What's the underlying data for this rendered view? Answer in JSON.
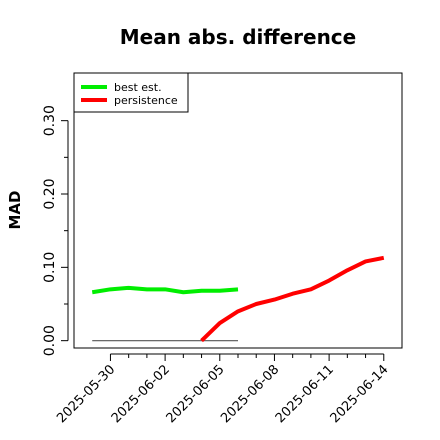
{
  "chart_data": {
    "type": "line",
    "title": "Mean abs. difference",
    "ylabel": "MAD",
    "xlabel": "",
    "xlim": [
      "2025-05-28",
      "2025-06-15"
    ],
    "ylim": [
      -0.01,
      0.365
    ],
    "y_ticks": [
      0.0,
      0.1,
      0.2,
      0.3
    ],
    "y_tick_labels": [
      "0.00",
      "0.10",
      "0.20",
      "0.30"
    ],
    "y_minor_ticks": [
      0.05,
      0.15,
      0.25
    ],
    "x_ticks": [
      "2025-05-30",
      "2025-06-02",
      "2025-06-05",
      "2025-06-08",
      "2025-06-11",
      "2025-06-14"
    ],
    "x_tick_labels": [
      "2025-05-30",
      "2025-06-02",
      "2025-06-05",
      "2025-06-08",
      "2025-06-11",
      "2025-06-14"
    ],
    "x_minor_ticks": [
      "2025-05-31",
      "2025-06-01",
      "2025-06-03",
      "2025-06-04",
      "2025-06-06",
      "2025-06-07",
      "2025-06-09",
      "2025-06-10",
      "2025-06-12",
      "2025-06-13"
    ],
    "legend": {
      "position": "top-left",
      "entries": [
        "best est.",
        "persistence"
      ]
    },
    "series": [
      {
        "name": "best est.",
        "color": "#00ee00",
        "x": [
          "2025-05-29",
          "2025-05-30",
          "2025-05-31",
          "2025-06-01",
          "2025-06-02",
          "2025-06-03",
          "2025-06-04",
          "2025-06-05",
          "2025-06-06"
        ],
        "y": [
          0.066,
          0.07,
          0.072,
          0.07,
          0.07,
          0.066,
          0.068,
          0.068,
          0.07
        ]
      },
      {
        "name": "persistence",
        "color": "#ff0000",
        "x": [
          "2025-06-04",
          "2025-06-05",
          "2025-06-06",
          "2025-06-07",
          "2025-06-08",
          "2025-06-09",
          "2025-06-10",
          "2025-06-11",
          "2025-06-12",
          "2025-06-13",
          "2025-06-14"
        ],
        "y": [
          0.0,
          0.024,
          0.04,
          0.05,
          0.056,
          0.064,
          0.07,
          0.082,
          0.096,
          0.108,
          0.113
        ]
      }
    ],
    "reference_line": {
      "color": "#555555",
      "x": [
        "2025-05-29",
        "2025-06-06"
      ],
      "y": [
        0.0,
        0.0
      ]
    }
  }
}
